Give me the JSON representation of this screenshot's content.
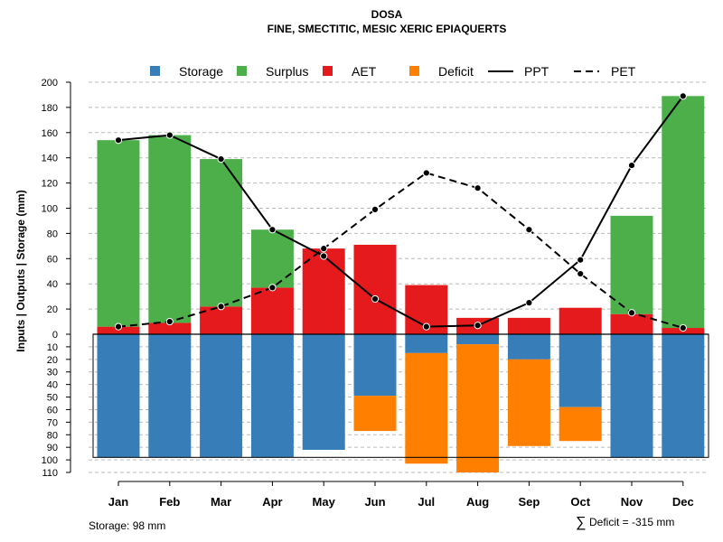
{
  "chart_data": {
    "type": "bar",
    "title": "DOSA",
    "subtitle": "FINE, SMECTITIC, MESIC XERIC EPIAQUERTS",
    "ylabel": "Inputs | Outputs | Storage    (mm)",
    "ylim_upper": [
      0,
      200
    ],
    "ylim_lower": [
      0,
      110
    ],
    "upper_ticks": [
      "0",
      "20",
      "40",
      "60",
      "80",
      "100",
      "120",
      "140",
      "160",
      "180",
      "200"
    ],
    "lower_ticks": [
      "0",
      "10",
      "20",
      "30",
      "40",
      "50",
      "60",
      "70",
      "80",
      "90",
      "100",
      "110"
    ],
    "categories": [
      "Jan",
      "Feb",
      "Mar",
      "Apr",
      "May",
      "Jun",
      "Jul",
      "Aug",
      "Sep",
      "Oct",
      "Nov",
      "Dec"
    ],
    "legend": [
      "Storage",
      "Surplus",
      "AET",
      "Deficit",
      "PPT",
      "PET"
    ],
    "series": [
      {
        "name": "AET",
        "values": [
          6,
          9,
          22,
          37,
          68,
          71,
          39,
          13,
          13,
          21,
          16,
          5
        ]
      },
      {
        "name": "Surplus",
        "values": [
          148,
          149,
          117,
          46,
          0,
          0,
          0,
          0,
          0,
          0,
          78,
          184
        ]
      },
      {
        "name": "Storage",
        "values": [
          98,
          98,
          98,
          98,
          92,
          49,
          15,
          8,
          20,
          58,
          98,
          98
        ]
      },
      {
        "name": "Deficit",
        "values": [
          0,
          0,
          0,
          0,
          0,
          28,
          88,
          102,
          69,
          27,
          0,
          0
        ]
      },
      {
        "name": "PPT",
        "values": [
          154,
          158,
          139,
          83,
          62,
          28,
          6,
          7,
          25,
          59,
          134,
          189
        ]
      },
      {
        "name": "PET",
        "values": [
          6,
          10,
          22,
          37,
          68,
          99,
          128,
          116,
          83,
          48,
          17,
          5
        ]
      }
    ],
    "storage_capacity": 98,
    "colors": {
      "Storage": "#377EB8",
      "Surplus": "#4DAF4A",
      "AET": "#E41A1C",
      "Deficit": "#FF7F00",
      "line": "#000000",
      "grid": "#bbbbbb"
    },
    "footer_left": "Storage: 98 mm",
    "footer_right_symbol": "∑",
    "footer_right": "Deficit = -315 mm"
  }
}
